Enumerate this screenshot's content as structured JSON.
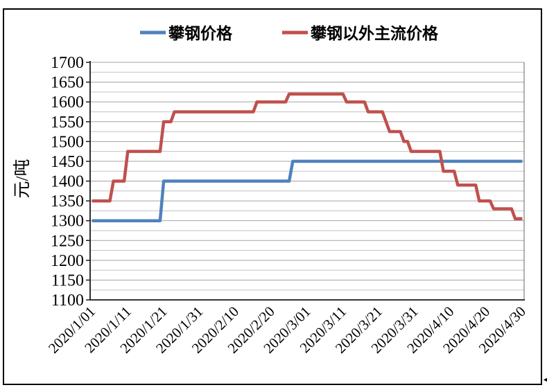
{
  "chart_data": {
    "type": "line",
    "title": "",
    "ylabel": "元/吨",
    "ylim": [
      1100,
      1700
    ],
    "y_major_step": 50,
    "y_minor_step": 25,
    "grid": true,
    "legend_position": "top-center",
    "y_tick_labels": [
      "1700",
      "1650",
      "1600",
      "1550",
      "1500",
      "1450",
      "1400",
      "1350",
      "1300",
      "1250",
      "1200",
      "1150",
      "1100"
    ],
    "x_tick_labels": [
      "2020/1/01",
      "2020/1/11",
      "2020/1/21",
      "2020/1/31",
      "2020/2/10",
      "2020/2/20",
      "2020/3/01",
      "2020/3/11",
      "2020/3/21",
      "2020/3/31",
      "2020/4/10",
      "2020/4/20",
      "2020/4/30"
    ],
    "x_tick_days": [
      0,
      10,
      20,
      30,
      40,
      50,
      60,
      70,
      80,
      90,
      100,
      110,
      120
    ],
    "x_domain_days": 121,
    "series": [
      {
        "name": "攀钢价格",
        "color": "#4F81BD",
        "points": [
          [
            0,
            1300
          ],
          [
            19,
            1300
          ],
          [
            20,
            1400
          ],
          [
            55,
            1400
          ],
          [
            56,
            1450
          ],
          [
            120,
            1450
          ]
        ]
      },
      {
        "name": "攀钢以外主流价格",
        "color": "#C0504D",
        "points": [
          [
            0,
            1350
          ],
          [
            5,
            1350
          ],
          [
            6,
            1400
          ],
          [
            9,
            1400
          ],
          [
            10,
            1475
          ],
          [
            19,
            1475
          ],
          [
            20,
            1550
          ],
          [
            22,
            1550
          ],
          [
            23,
            1575
          ],
          [
            45,
            1575
          ],
          [
            46,
            1600
          ],
          [
            54,
            1600
          ],
          [
            55,
            1620
          ],
          [
            70,
            1620
          ],
          [
            71,
            1600
          ],
          [
            76,
            1600
          ],
          [
            77,
            1575
          ],
          [
            81,
            1575
          ],
          [
            83,
            1525
          ],
          [
            86,
            1525
          ],
          [
            87,
            1500
          ],
          [
            88,
            1500
          ],
          [
            89,
            1475
          ],
          [
            97,
            1475
          ],
          [
            98,
            1425
          ],
          [
            101,
            1425
          ],
          [
            102,
            1390
          ],
          [
            107,
            1390
          ],
          [
            108,
            1350
          ],
          [
            111,
            1350
          ],
          [
            112,
            1330
          ],
          [
            117,
            1330
          ],
          [
            118,
            1305
          ],
          [
            120,
            1305
          ]
        ]
      }
    ]
  },
  "decorations": {
    "corner_mark": "◄"
  }
}
